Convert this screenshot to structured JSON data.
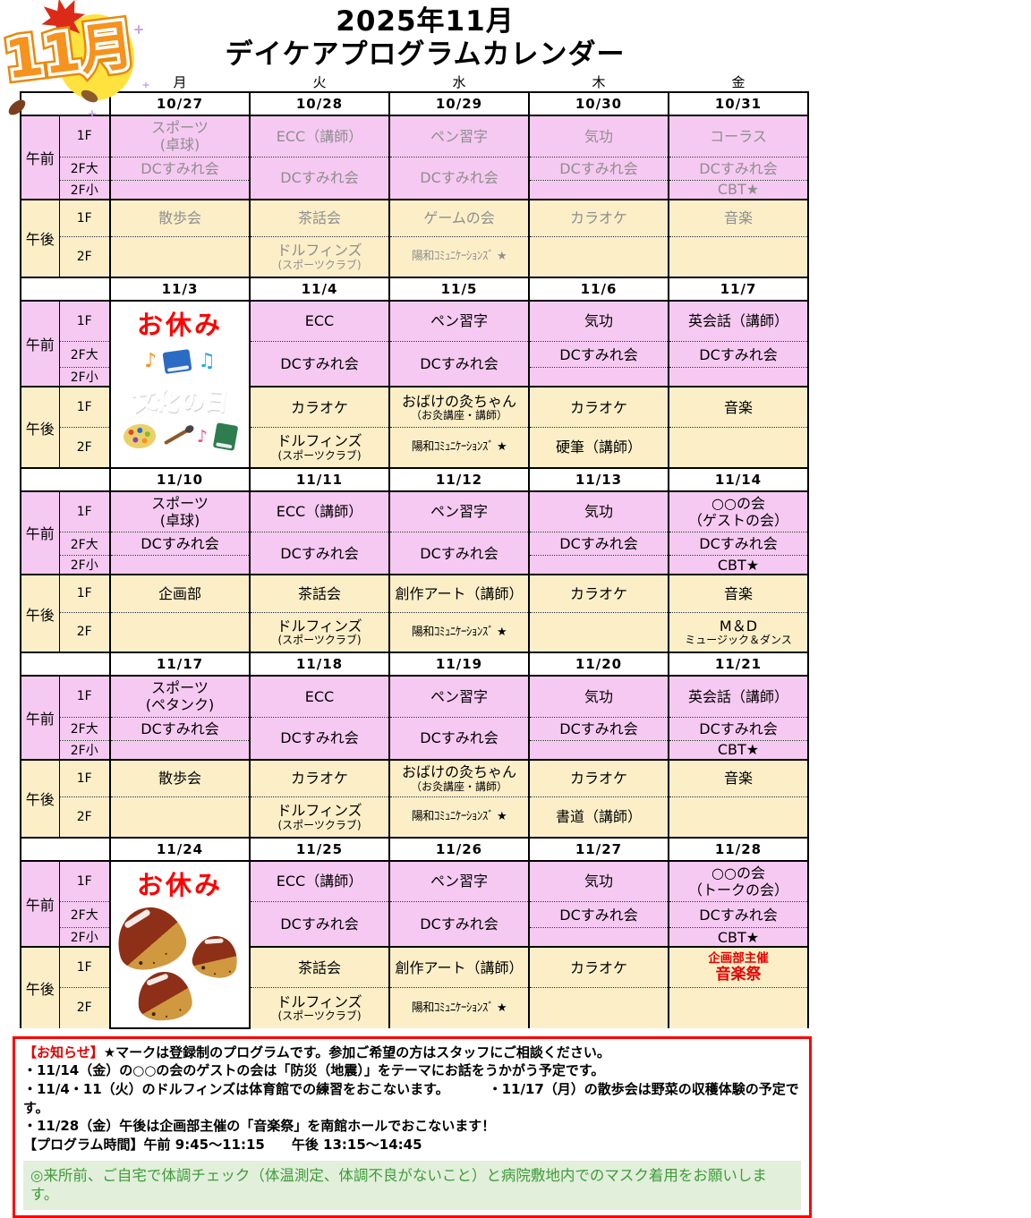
{
  "title": {
    "line1": "2025年11月",
    "line2": "デイケアプログラムカレンダー"
  },
  "logo": {
    "label": "11月"
  },
  "days": [
    "月",
    "火",
    "水",
    "木",
    "金"
  ],
  "labels": {
    "am": "午前",
    "pm": "午後",
    "am_floors": [
      "1F",
      "2F大",
      "2F小"
    ],
    "pm_floors": [
      "1F",
      "2F"
    ]
  },
  "colors": {
    "am_bg": "#F6C9F2",
    "pm_bg": "#FCEFC8",
    "muted_text": "#8E8E8E",
    "holiday_red": "#FF0000",
    "event_red": "#E60000",
    "notice_border": "#FF0000",
    "green_bg": "#E2EFDA",
    "green_text": "#3E9C3A",
    "logo_orange": "#F6921E",
    "maple_red": "#DB2B18"
  },
  "weeks": [
    {
      "dates": [
        "10/27",
        "10/28",
        "10/29",
        "10/30",
        "10/31"
      ],
      "muted": true,
      "days": [
        {
          "am1": {
            "l1": "スポーツ",
            "l2": "(卓球)"
          },
          "am2": {
            "l1": "DCすみれ会"
          },
          "merged": false,
          "am3": null,
          "pm1": {
            "l1": "散歩会"
          },
          "pm2": null
        },
        {
          "am1": {
            "l1": "ECC（講師）"
          },
          "am2": {
            "l1": "DCすみれ会"
          },
          "merged": true,
          "pm1": {
            "l1": "茶話会"
          },
          "pm2": {
            "l1": "ドルフィンズ",
            "l2": "(スポーツクラブ)",
            "l2s": true
          }
        },
        {
          "am1": {
            "l1": "ペン習字"
          },
          "am2": {
            "l1": "DCすみれ会"
          },
          "merged": true,
          "pm1": {
            "l1": "ゲームの会"
          },
          "pm2": {
            "l1": "陽和ｺﾐｭﾆｹｰｼｮﾝｽﾞ ★",
            "c": "narrow"
          }
        },
        {
          "am1": {
            "l1": "気功"
          },
          "am2": {
            "l1": "DCすみれ会"
          },
          "merged": false,
          "am3": null,
          "pm1": {
            "l1": "カラオケ"
          },
          "pm2": null
        },
        {
          "am1": {
            "l1": "コーラス"
          },
          "am2": {
            "l1": "DCすみれ会"
          },
          "merged": false,
          "am3": {
            "l1": "CBT★"
          },
          "pm1": {
            "l1": "音楽"
          },
          "pm2": null
        }
      ]
    },
    {
      "dates": [
        "11/3",
        "11/4",
        "11/5",
        "11/6",
        "11/7"
      ],
      "muted": false,
      "holiday": {
        "col": 0,
        "label": "お休み",
        "art": "bunka",
        "art_text": "文化の日"
      },
      "days": [
        null,
        {
          "am1": {
            "l1": "ECC"
          },
          "am2": {
            "l1": "DCすみれ会"
          },
          "merged": true,
          "pm1": {
            "l1": "カラオケ"
          },
          "pm2": {
            "l1": "ドルフィンズ",
            "l2": "(スポーツクラブ)",
            "l2s": true
          }
        },
        {
          "am1": {
            "l1": "ペン習字"
          },
          "am2": {
            "l1": "DCすみれ会"
          },
          "merged": true,
          "pm1": {
            "l1": "おばけの灸ちゃん",
            "l2": "（お灸講座・講師）",
            "l2s": true
          },
          "pm2": {
            "l1": "陽和ｺﾐｭﾆｹｰｼｮﾝｽﾞ ★",
            "c": "narrow"
          }
        },
        {
          "am1": {
            "l1": "気功"
          },
          "am2": {
            "l1": "DCすみれ会"
          },
          "merged": false,
          "am3": null,
          "pm1": {
            "l1": "カラオケ"
          },
          "pm2": {
            "l1": "硬筆（講師）"
          }
        },
        {
          "am1": {
            "l1": "英会話（講師）"
          },
          "am2": {
            "l1": "DCすみれ会"
          },
          "merged": false,
          "am3": null,
          "pm1": {
            "l1": "音楽"
          },
          "pm2": null
        }
      ]
    },
    {
      "dates": [
        "11/10",
        "11/11",
        "11/12",
        "11/13",
        "11/14"
      ],
      "muted": false,
      "days": [
        {
          "am1": {
            "l1": "スポーツ",
            "l2": "(卓球)"
          },
          "am2": {
            "l1": "DCすみれ会"
          },
          "merged": false,
          "am3": null,
          "pm1": {
            "l1": "企画部"
          },
          "pm2": null
        },
        {
          "am1": {
            "l1": "ECC（講師）"
          },
          "am2": {
            "l1": "DCすみれ会"
          },
          "merged": true,
          "pm1": {
            "l1": "茶話会"
          },
          "pm2": {
            "l1": "ドルフィンズ",
            "l2": "(スポーツクラブ)",
            "l2s": true
          }
        },
        {
          "am1": {
            "l1": "ペン習字"
          },
          "am2": {
            "l1": "DCすみれ会"
          },
          "merged": true,
          "pm1": {
            "l1": "創作アート（講師）"
          },
          "pm2": {
            "l1": "陽和ｺﾐｭﾆｹｰｼｮﾝｽﾞ ★",
            "c": "narrow"
          }
        },
        {
          "am1": {
            "l1": "気功"
          },
          "am2": {
            "l1": "DCすみれ会"
          },
          "merged": false,
          "am3": null,
          "pm1": {
            "l1": "カラオケ"
          },
          "pm2": null
        },
        {
          "am1": {
            "l1": "○○の会",
            "l2": "（ゲストの会）"
          },
          "am2": {
            "l1": "DCすみれ会"
          },
          "merged": false,
          "am3": {
            "l1": "CBT★"
          },
          "pm1": {
            "l1": "音楽"
          },
          "pm2": {
            "l1": "M＆D",
            "l2": "ミュージック＆ダンス",
            "l2s": true
          }
        }
      ]
    },
    {
      "dates": [
        "11/17",
        "11/18",
        "11/19",
        "11/20",
        "11/21"
      ],
      "muted": false,
      "days": [
        {
          "am1": {
            "l1": "スポーツ",
            "l2": "(ペタンク)"
          },
          "am2": {
            "l1": "DCすみれ会"
          },
          "merged": false,
          "am3": null,
          "pm1": {
            "l1": "散歩会"
          },
          "pm2": null
        },
        {
          "am1": {
            "l1": "ECC"
          },
          "am2": {
            "l1": "DCすみれ会"
          },
          "merged": true,
          "pm1": {
            "l1": "カラオケ"
          },
          "pm2": {
            "l1": "ドルフィンズ",
            "l2": "(スポーツクラブ)",
            "l2s": true
          }
        },
        {
          "am1": {
            "l1": "ペン習字"
          },
          "am2": {
            "l1": "DCすみれ会"
          },
          "merged": true,
          "pm1": {
            "l1": "おばけの灸ちゃん",
            "l2": "（お灸講座・講師）",
            "l2s": true
          },
          "pm2": {
            "l1": "陽和ｺﾐｭﾆｹｰｼｮﾝｽﾞ ★",
            "c": "narrow"
          }
        },
        {
          "am1": {
            "l1": "気功"
          },
          "am2": {
            "l1": "DCすみれ会"
          },
          "merged": false,
          "am3": null,
          "pm1": {
            "l1": "カラオケ"
          },
          "pm2": {
            "l1": "書道（講師）"
          }
        },
        {
          "am1": {
            "l1": "英会話（講師）"
          },
          "am2": {
            "l1": "DCすみれ会"
          },
          "merged": false,
          "am3": {
            "l1": "CBT★"
          },
          "pm1": {
            "l1": "音楽"
          },
          "pm2": null
        }
      ]
    },
    {
      "dates": [
        "11/24",
        "11/25",
        "11/26",
        "11/27",
        "11/28"
      ],
      "muted": false,
      "holiday": {
        "col": 0,
        "label": "お休み",
        "art": "kuri"
      },
      "days": [
        null,
        {
          "am1": {
            "l1": "ECC（講師）"
          },
          "am2": {
            "l1": "DCすみれ会"
          },
          "merged": true,
          "pm1": {
            "l1": "茶話会"
          },
          "pm2": {
            "l1": "ドルフィンズ",
            "l2": "(スポーツクラブ)",
            "l2s": true
          }
        },
        {
          "am1": {
            "l1": "ペン習字"
          },
          "am2": {
            "l1": "DCすみれ会"
          },
          "merged": true,
          "pm1": {
            "l1": "創作アート（講師）"
          },
          "pm2": {
            "l1": "陽和ｺﾐｭﾆｹｰｼｮﾝｽﾞ ★",
            "c": "narrow"
          }
        },
        {
          "am1": {
            "l1": "気功"
          },
          "am2": {
            "l1": "DCすみれ会"
          },
          "merged": false,
          "am3": null,
          "pm1": {
            "l1": "カラオケ"
          },
          "pm2": null
        },
        {
          "am1": {
            "l1": "○○の会",
            "l2": "（トークの会）"
          },
          "am2": {
            "l1": "DCすみれ会"
          },
          "merged": false,
          "am3": {
            "l1": "CBT★"
          },
          "pm1": {
            "l1": "企画部主催",
            "l2": "音楽祭",
            "c": "red"
          },
          "pm2": null
        }
      ]
    }
  ],
  "notice": {
    "header_label": "【お知らせ】",
    "header_text": "★マークは登録制のプログラムです。参加ご希望の方はスタッフにご相談ください。",
    "line2": "・11/14（金）の○○の会のゲストの会は「防災（地震）」をテーマにお話をうかがう予定です。",
    "line3a": "・11/4・11（火）のドルフィンズは体育館での練習をおこないます。",
    "line3b": "・11/17（月）の散歩会は野菜の収穫体験の予定です。",
    "line4": "・11/28（金）午後は企画部主催の「音楽祭」を南館ホールでおこないます！",
    "line5": "【プログラム時間】午前 9:45～11:15　　午後 13:15～14:45",
    "green": "◎来所前、ご自宅で体調チェック（体温測定、体調不良がないこと）と病院敷地内でのマスク着用をお願いします。"
  }
}
